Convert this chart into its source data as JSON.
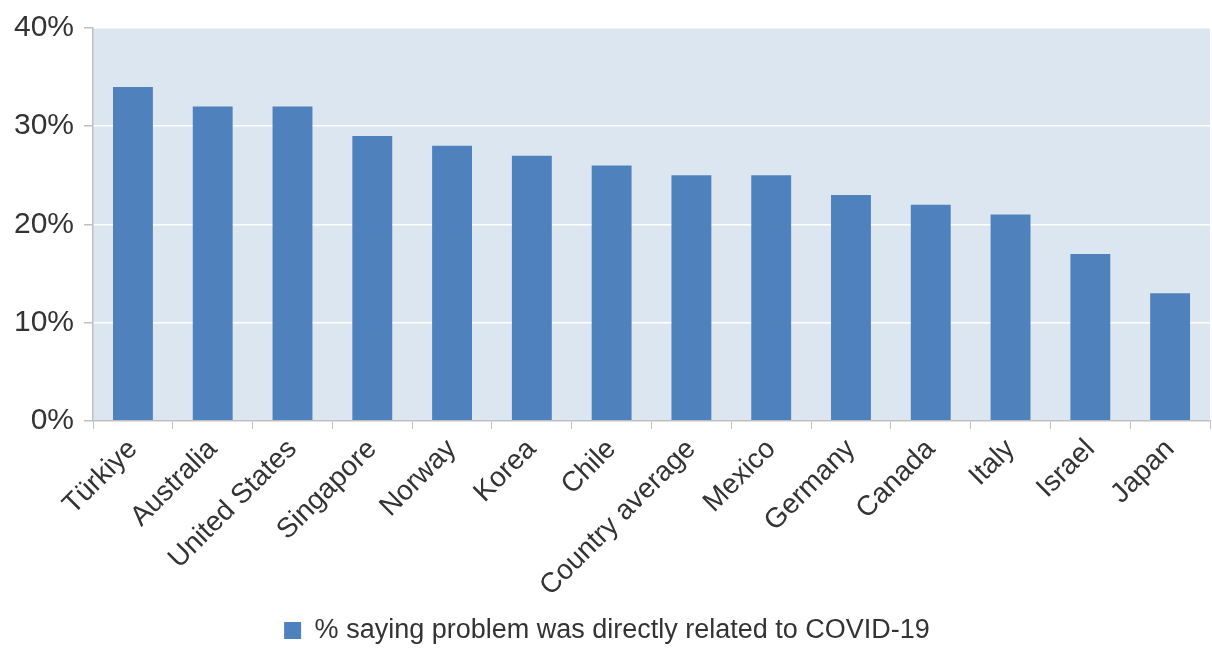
{
  "chart_data": {
    "type": "bar",
    "categories": [
      "Türkiye",
      "Australia",
      "United States",
      "Singapore",
      "Norway",
      "Korea",
      "Chile",
      "Country average",
      "Mexico",
      "Germany",
      "Canada",
      "Italy",
      "Israel",
      "Japan"
    ],
    "series": [
      {
        "name": "% saying problem was directly related to COVID-19",
        "color": "#4f81bd",
        "values": [
          34,
          32,
          32,
          29,
          28,
          27,
          26,
          25,
          25,
          23,
          22,
          21,
          17,
          13
        ]
      }
    ],
    "ylim": [
      0,
      40
    ],
    "yticks": [
      {
        "value": 0,
        "label": "0%"
      },
      {
        "value": 10,
        "label": "10%"
      },
      {
        "value": 20,
        "label": "20%"
      },
      {
        "value": 30,
        "label": "30%"
      },
      {
        "value": 40,
        "label": "40%"
      }
    ],
    "grid": "y",
    "legend": "bottom"
  }
}
